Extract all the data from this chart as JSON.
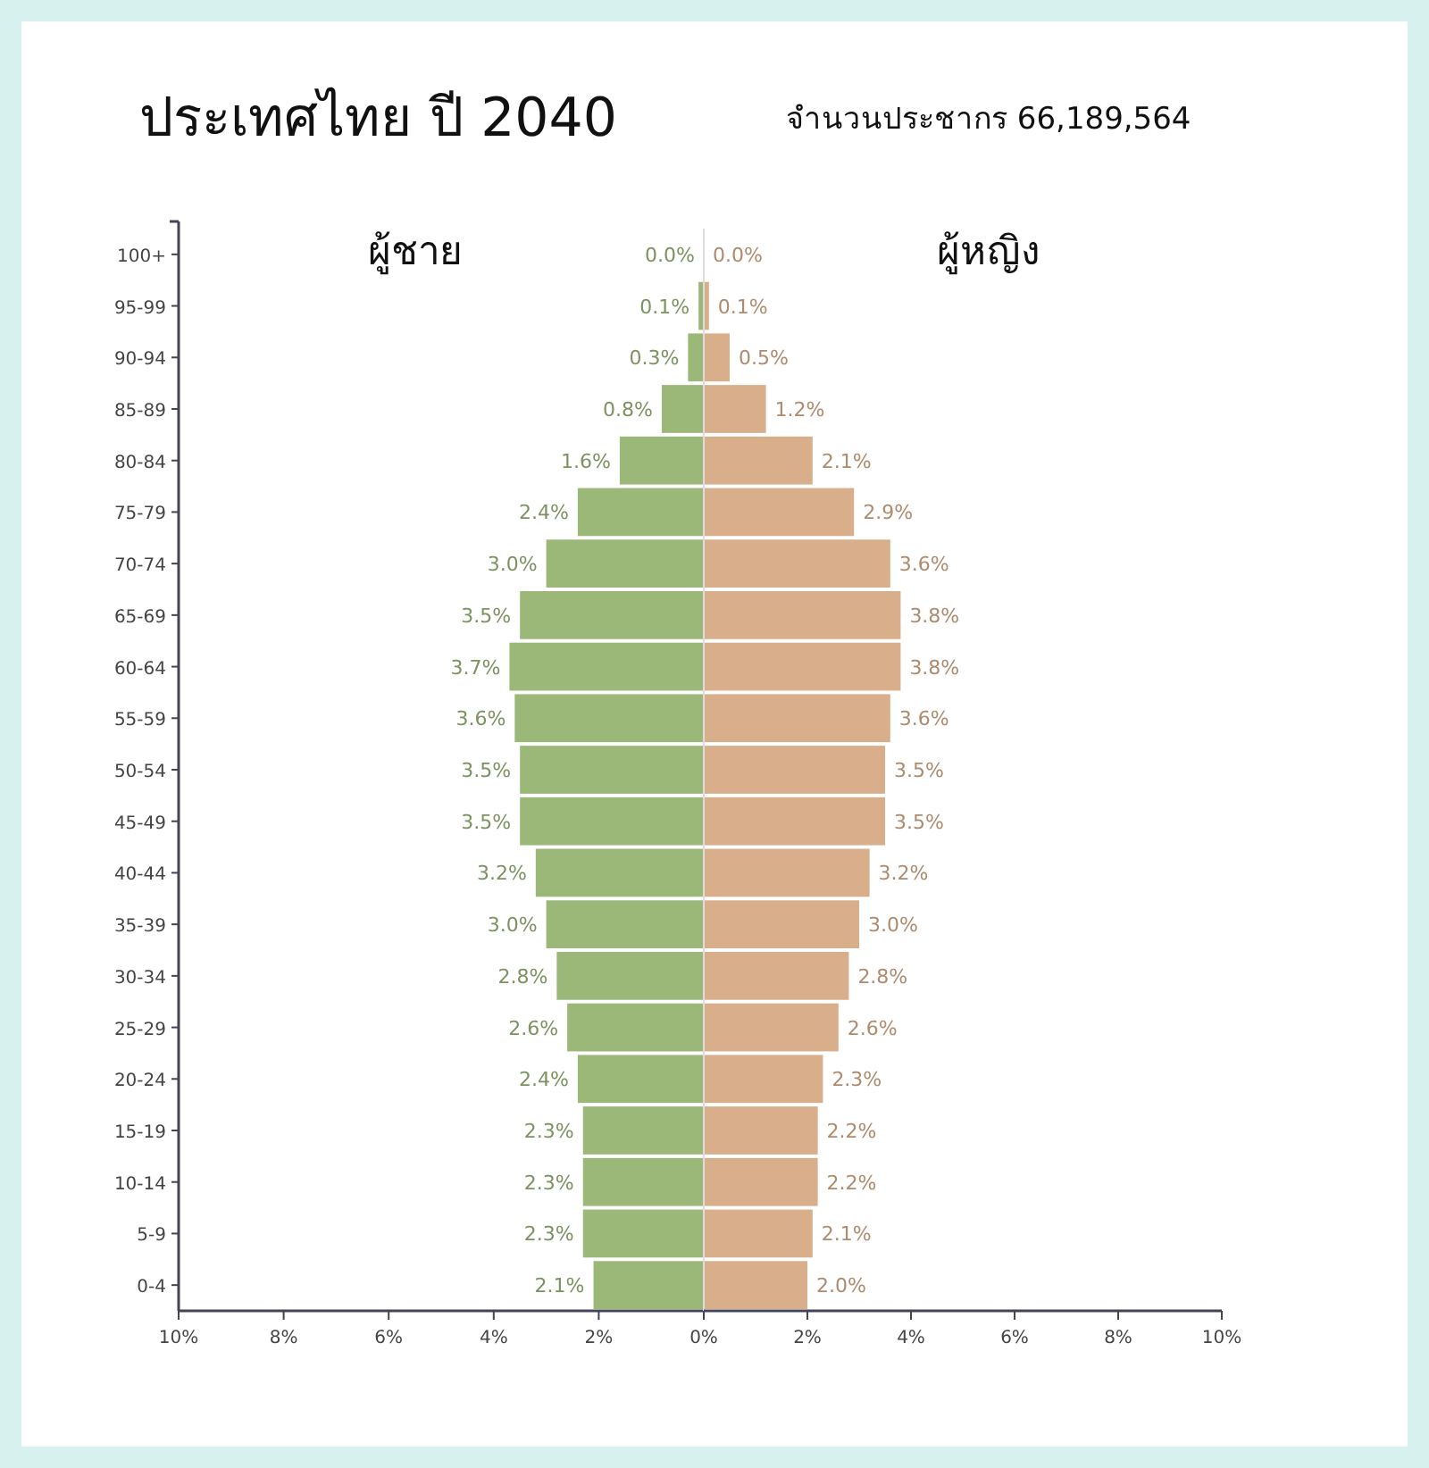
{
  "chart_data": [
    {
      "type": "bar",
      "orientation": "horizontal",
      "title": "ประเทศไทย ปี 2040",
      "categories": [
        "100+",
        "95-99",
        "90-94",
        "85-89",
        "80-84",
        "75-79",
        "70-74",
        "65-69",
        "60-64",
        "55-59",
        "50-54",
        "45-49",
        "40-44",
        "35-39",
        "30-34",
        "25-29",
        "20-24",
        "15-19",
        "10-14",
        "5-9",
        "0-4"
      ],
      "series": [
        {
          "name": "ผู้ชาย",
          "color": "#9bb878",
          "values": [
            0.0,
            0.1,
            0.3,
            0.8,
            1.6,
            2.4,
            3.0,
            3.5,
            3.7,
            3.6,
            3.5,
            3.5,
            3.2,
            3.0,
            2.8,
            2.6,
            2.4,
            2.3,
            2.3,
            2.3,
            2.1
          ],
          "value_labels": [
            "0.0%",
            "0.1%",
            "0.3%",
            "0.8%",
            "1.6%",
            "2.4%",
            "3.0%",
            "3.5%",
            "3.7%",
            "3.6%",
            "3.5%",
            "3.5%",
            "3.2%",
            "3.0%",
            "2.8%",
            "2.6%",
            "2.4%",
            "2.3%",
            "2.3%",
            "2.3%",
            "2.1%"
          ]
        }
      ],
      "xlim": [
        10,
        0
      ],
      "xticks": [
        {
          "value": 10,
          "label": "10%"
        },
        {
          "value": 8,
          "label": "8%"
        },
        {
          "value": 6,
          "label": "6%"
        },
        {
          "value": 4,
          "label": "4%"
        },
        {
          "value": 2,
          "label": "2%"
        },
        {
          "value": 0,
          "label": "0%"
        }
      ]
    },
    {
      "type": "bar",
      "orientation": "horizontal",
      "subtitle": "จำนวนประชากร 66,189,564",
      "categories": [
        null,
        null,
        null,
        null,
        null,
        null,
        null,
        null,
        null,
        null,
        null,
        null,
        null,
        null,
        null,
        null,
        null,
        null,
        null,
        null,
        null
      ],
      "series": [
        {
          "name": "ผู้หญิง",
          "color": "#d9ae8a",
          "values": [
            0.0,
            0.1,
            0.5,
            1.2,
            2.1,
            2.9,
            3.6,
            3.8,
            3.8,
            3.6,
            3.5,
            3.5,
            3.2,
            3.0,
            2.8,
            2.6,
            2.3,
            2.2,
            2.2,
            2.1,
            2.0
          ],
          "value_labels": [
            "0.0%",
            "0.1%",
            "0.5%",
            "1.2%",
            "2.1%",
            "2.9%",
            "3.6%",
            "3.8%",
            "3.8%",
            "3.6%",
            "3.5%",
            "3.5%",
            "3.2%",
            "3.0%",
            "2.8%",
            "2.6%",
            "2.3%",
            "2.2%",
            "2.2%",
            "2.1%",
            "2.0%"
          ]
        }
      ],
      "xlim": [
        0,
        10
      ],
      "xticks": [
        {
          "value": 0,
          "label": null
        },
        {
          "value": 2,
          "label": "2%"
        },
        {
          "value": 4,
          "label": "4%"
        },
        {
          "value": 6,
          "label": "6%"
        },
        {
          "value": 8,
          "label": "8%"
        },
        {
          "value": 10,
          "label": "10%"
        }
      ],
      "tick_labels": "x"
    }
  ]
}
